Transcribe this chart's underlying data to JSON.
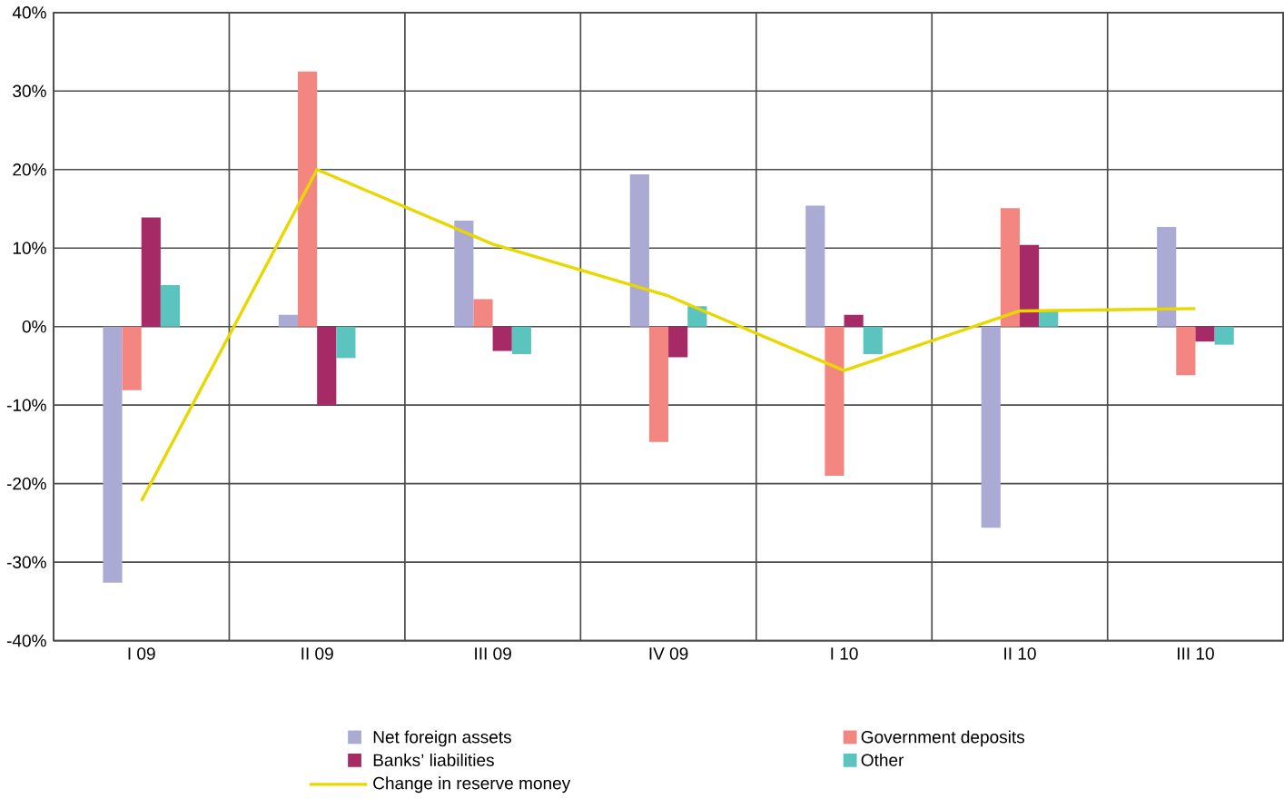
{
  "chart_data": {
    "type": "bar",
    "categories": [
      "I 09",
      "II 09",
      "III 09",
      "IV 09",
      "I 10",
      "II 10",
      "III 10"
    ],
    "series": [
      {
        "name": "Net foreign assets",
        "color": "#aaaad4",
        "values": [
          -32.6,
          1.5,
          13.5,
          19.4,
          15.4,
          -25.6,
          12.7
        ]
      },
      {
        "name": "Government deposits",
        "color": "#f48682",
        "values": [
          -8.1,
          32.5,
          3.5,
          -14.7,
          -19.0,
          15.1,
          -6.2
        ]
      },
      {
        "name": "Banks’ liabilities",
        "color": "#a52a65",
        "values": [
          13.9,
          -10.0,
          -3.1,
          -3.9,
          1.5,
          10.4,
          -1.9
        ]
      },
      {
        "name": "Other",
        "color": "#5bc4bf",
        "values": [
          5.3,
          -4.0,
          -3.5,
          2.6,
          -3.5,
          2.1,
          -2.3
        ]
      },
      {
        "name": "Change in reserve money",
        "type": "line",
        "color": "#e8d800",
        "values": [
          -22.2,
          20.0,
          10.5,
          3.9,
          -5.6,
          2.0,
          2.3
        ]
      }
    ],
    "ylim": [
      -40,
      40
    ],
    "yticks": [
      {
        "value": -40,
        "label": "-40%"
      },
      {
        "value": -30,
        "label": "-30%"
      },
      {
        "value": -20,
        "label": "-20%"
      },
      {
        "value": -10,
        "label": "-10%"
      },
      {
        "value": 0,
        "label": "0%"
      },
      {
        "value": 10,
        "label": "10%"
      },
      {
        "value": 20,
        "label": "20%"
      },
      {
        "value": 30,
        "label": "30%"
      },
      {
        "value": 40,
        "label": "40%"
      }
    ],
    "grid": true,
    "legend": "bottom"
  }
}
